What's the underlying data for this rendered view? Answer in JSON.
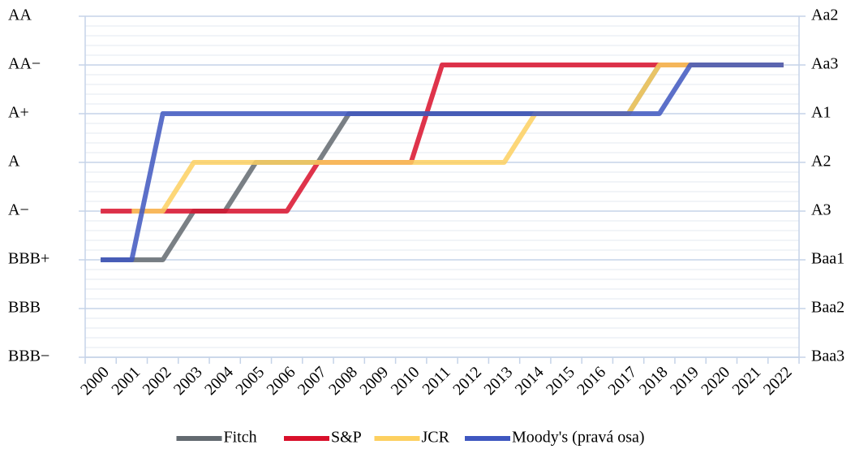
{
  "chart_data": {
    "type": "line",
    "categories": [
      "2000",
      "2001",
      "2002",
      "2003",
      "2004",
      "2005",
      "2006",
      "2007",
      "2008",
      "2009",
      "2010",
      "2011",
      "2012",
      "2013",
      "2014",
      "2015",
      "2016",
      "2017",
      "2018",
      "2019",
      "2020",
      "2021",
      "2022"
    ],
    "ylim": [
      0,
      7
    ],
    "yticks": [
      {
        "value": 0,
        "label": "BBB−"
      },
      {
        "value": 1,
        "label": "BBB"
      },
      {
        "value": 2,
        "label": "BBB+"
      },
      {
        "value": 3,
        "label": "A−"
      },
      {
        "value": 4,
        "label": "A"
      },
      {
        "value": 5,
        "label": "A+"
      },
      {
        "value": 6,
        "label": "AA−"
      },
      {
        "value": 7,
        "label": "AA"
      }
    ],
    "y2lim": [
      0,
      7
    ],
    "y2ticks": [
      {
        "value": 0,
        "label": "Baa3"
      },
      {
        "value": 1,
        "label": "Baa2"
      },
      {
        "value": 2,
        "label": "Baa1"
      },
      {
        "value": 3,
        "label": "A3"
      },
      {
        "value": 4,
        "label": "A2"
      },
      {
        "value": 5,
        "label": "A1"
      },
      {
        "value": 6,
        "label": "Aa3"
      },
      {
        "value": 7,
        "label": "Aa2"
      }
    ],
    "grid": true,
    "legend": "bottom",
    "series": [
      {
        "name": "Fitch",
        "color": "#636a70",
        "values": [
          2,
          2,
          2,
          3,
          3,
          4,
          4,
          4,
          5,
          5,
          5,
          5,
          5,
          5,
          5,
          5,
          5,
          5,
          6,
          6,
          6,
          6,
          6
        ]
      },
      {
        "name": "S&P",
        "color": "#d9102b",
        "values": [
          3,
          3,
          3,
          3,
          3,
          3,
          3,
          4,
          4,
          4,
          4,
          6,
          6,
          6,
          6,
          6,
          6,
          6,
          6,
          6,
          6,
          6,
          6
        ]
      },
      {
        "name": "JCR",
        "color": "#fdd060",
        "values": [
          null,
          3,
          3,
          4,
          4,
          4,
          4,
          4,
          4,
          4,
          4,
          4,
          4,
          4,
          5,
          5,
          5,
          5,
          6,
          6,
          6,
          6,
          6
        ]
      },
      {
        "name": "Moody's (pravá osa)",
        "color": "#3f57c0",
        "axis": "y2",
        "values": [
          2,
          2,
          5,
          5,
          5,
          5,
          5,
          5,
          5,
          5,
          5,
          5,
          5,
          5,
          5,
          5,
          5,
          5,
          5,
          6,
          6,
          6,
          6
        ]
      }
    ]
  }
}
